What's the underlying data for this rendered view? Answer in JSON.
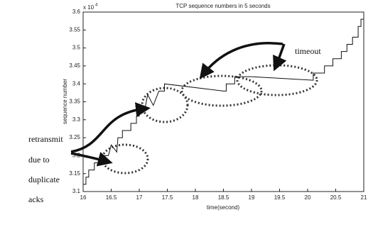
{
  "chart_data": {
    "type": "line",
    "title": "TCP sequence numbers in 5 seconds",
    "xlabel": "time(second)",
    "ylabel": "sequence number",
    "multiplier": "x 10",
    "multiplier_exponent": "4",
    "annotations": [
      "retransmit",
      "due to",
      "duplicate",
      "acks",
      "timeout"
    ],
    "x": [
      16,
      16.05,
      16.05,
      16.1,
      16.1,
      16.2,
      16.2,
      16.3,
      16.3,
      16.45,
      16.5,
      16.6,
      16.62,
      16.7,
      16.7,
      16.85,
      16.85,
      16.95,
      16.95,
      17.0,
      17.0,
      17.1,
      17.15,
      17.25,
      17.35,
      17.45,
      17.45,
      18.5,
      18.55,
      18.55,
      18.7,
      18.7,
      19.0,
      20.1,
      20.1,
      20.3,
      20.3,
      20.45,
      20.45,
      20.6,
      20.6,
      20.7,
      20.7,
      20.8,
      20.8,
      20.9,
      20.9,
      20.95,
      20.95,
      21
    ],
    "values": [
      3.12,
      3.12,
      3.14,
      3.14,
      3.16,
      3.16,
      3.18,
      3.18,
      3.2,
      3.2,
      3.23,
      3.21,
      3.25,
      3.25,
      3.27,
      3.27,
      3.29,
      3.29,
      3.31,
      3.31,
      3.33,
      3.33,
      3.37,
      3.34,
      3.38,
      3.38,
      3.4,
      3.38,
      3.38,
      3.4,
      3.4,
      3.42,
      3.42,
      3.41,
      3.43,
      3.43,
      3.45,
      3.45,
      3.47,
      3.47,
      3.49,
      3.49,
      3.51,
      3.51,
      3.53,
      3.53,
      3.56,
      3.56,
      3.58,
      3.58
    ],
    "color": "#111111",
    "xlim": [
      16,
      21
    ],
    "ylim": [
      3.1,
      3.6
    ],
    "xticks": [
      16,
      16.5,
      17,
      17.5,
      18,
      18.5,
      19,
      19.5,
      20,
      20.5,
      21
    ],
    "yticks": [
      3.1,
      3.15,
      3.2,
      3.25,
      3.3,
      3.35,
      3.4,
      3.45,
      3.5,
      3.55,
      3.6
    ],
    "grid": false
  }
}
